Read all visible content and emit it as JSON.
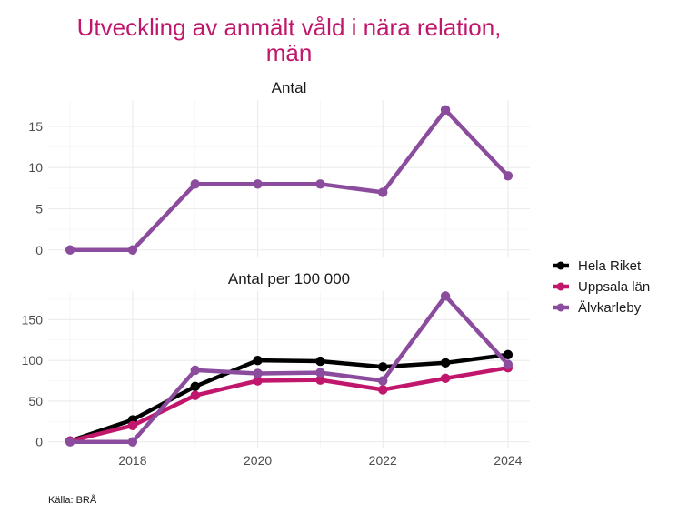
{
  "chart_data": {
    "type": "line",
    "title_lines": [
      "Utveckling av anmält våld i nära relation,",
      "män"
    ],
    "caption": "Källa: BRÅ",
    "x": [
      2017,
      2018,
      2019,
      2020,
      2021,
      2022,
      2023,
      2024
    ],
    "x_ticks": [
      2018,
      2020,
      2022,
      2024
    ],
    "xlim": [
      2016.65,
      2024.35
    ],
    "grid": true,
    "legend_position": "right",
    "legend": [
      {
        "name": "Hela Riket",
        "color": "#000000"
      },
      {
        "name": "Uppsala län",
        "color": "#c0166b"
      },
      {
        "name": "Älvkarleby",
        "color": "#8b4c9e"
      }
    ],
    "panels": [
      {
        "title": "Antal",
        "ylim": [
          -0.8,
          18.2
        ],
        "y_ticks": [
          0,
          5,
          10,
          15
        ],
        "series": [
          {
            "name": "Älvkarleby",
            "color": "#8b4c9e",
            "values": [
              0,
              0,
              8,
              8,
              8,
              7,
              17,
              9
            ]
          }
        ]
      },
      {
        "title": "Antal per 100 000",
        "ylim": [
          -7,
          185
        ],
        "y_ticks": [
          0,
          50,
          100,
          150
        ],
        "series": [
          {
            "name": "Hela Riket",
            "color": "#000000",
            "values": [
              1,
              27,
              68,
              100,
              99,
              92,
              97,
              107
            ]
          },
          {
            "name": "Uppsala län",
            "color": "#c0166b",
            "values": [
              1,
              20,
              57,
              75,
              76,
              64,
              78,
              91
            ]
          },
          {
            "name": "Älvkarleby",
            "color": "#8b4c9e",
            "values": [
              0,
              0,
              88,
              84,
              85,
              75,
              179,
              95
            ]
          }
        ]
      }
    ]
  }
}
